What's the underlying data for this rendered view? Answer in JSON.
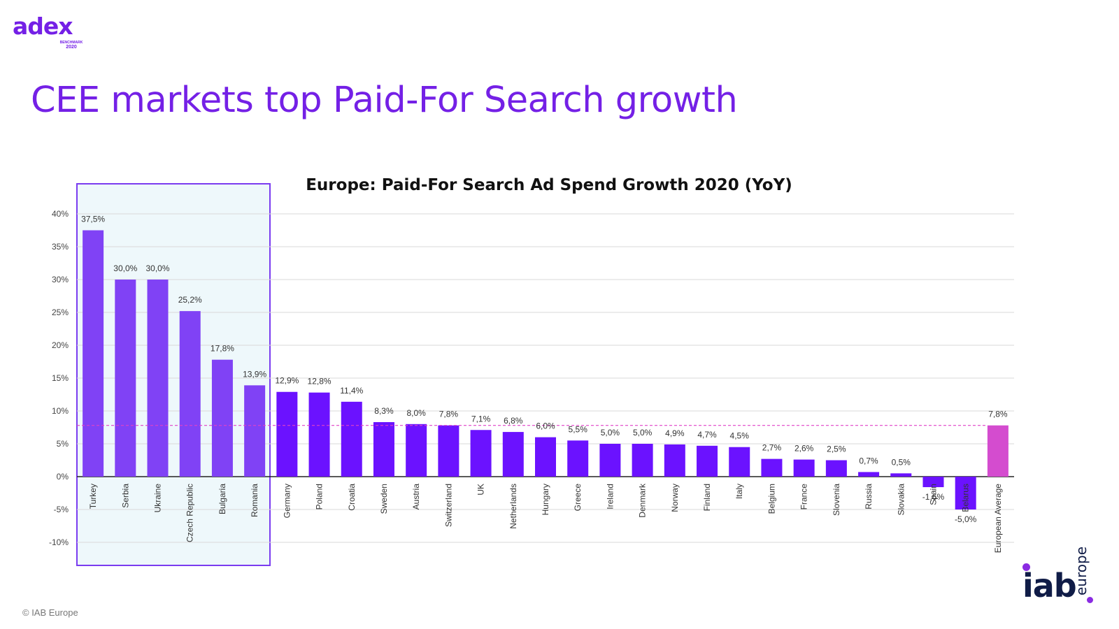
{
  "logo_adex": {
    "word": "adex",
    "subtitle": "BENCHMARK",
    "year": "2020",
    "color": "#7420e6"
  },
  "page": {
    "title": "CEE markets top Paid-For Search growth",
    "copyright": "© IAB Europe"
  },
  "logo_iab": {
    "word": "iab",
    "suffix": "europe",
    "dark_color": "#101c47",
    "dot_color": "#8a2be2"
  },
  "colors": {
    "cee_bar": "#8042f5",
    "bar": "#6b12ff",
    "average_bar": "#d44ccf",
    "average_line": "#e040c8",
    "highlight_fill": "#eef8fb",
    "highlight_border": "#7a3cf0"
  },
  "chart_data": {
    "type": "bar",
    "title": "Europe: Paid-For Search Ad Spend Growth 2020 (YoY)",
    "xlabel": "",
    "ylabel": "",
    "ylim": [
      -10,
      40
    ],
    "yticks": [
      -10,
      -5,
      0,
      5,
      10,
      15,
      20,
      25,
      30,
      35,
      40
    ],
    "ytick_labels": [
      "-10%",
      "-5%",
      "0%",
      "5%",
      "10%",
      "15%",
      "20%",
      "25%",
      "30%",
      "35%",
      "40%"
    ],
    "grid": true,
    "highlighted_group": [
      "Turkey",
      "Serbia",
      "Ukraine",
      "Czech Republic",
      "Bulgaria",
      "Romania"
    ],
    "reference_line": {
      "value": 7.8,
      "style": "dashed"
    },
    "categories": [
      "Turkey",
      "Serbia",
      "Ukraine",
      "Czech Republic",
      "Bulgaria",
      "Romania",
      "Germany",
      "Poland",
      "Croatia",
      "Sweden",
      "Austria",
      "Switzerland",
      "UK",
      "Netherlands",
      "Hungary",
      "Greece",
      "Ireland",
      "Denmark",
      "Norway",
      "Finland",
      "Italy",
      "Belgium",
      "France",
      "Slovenia",
      "Russia",
      "Slovakia",
      "Spain",
      "Belarus",
      "European Average"
    ],
    "values": [
      37.5,
      30.0,
      30.0,
      25.2,
      17.8,
      13.9,
      12.9,
      12.8,
      11.4,
      8.3,
      8.0,
      7.8,
      7.1,
      6.8,
      6.0,
      5.5,
      5.0,
      5.0,
      4.9,
      4.7,
      4.5,
      2.7,
      2.6,
      2.5,
      0.7,
      0.5,
      -1.6,
      -5.0,
      7.8
    ],
    "data_labels": [
      "37,5%",
      "30,0%",
      "30,0%",
      "25,2%",
      "17,8%",
      "13,9%",
      "12,9%",
      "12,8%",
      "11,4%",
      "8,3%",
      "8,0%",
      "7,8%",
      "7,1%",
      "6,8%",
      "6,0%",
      "5,5%",
      "5,0%",
      "5,0%",
      "4,9%",
      "4,7%",
      "4,5%",
      "2,7%",
      "2,6%",
      "2,5%",
      "0,7%",
      "0,5%",
      "-1,6%",
      "-5,0%",
      "7,8%"
    ]
  }
}
